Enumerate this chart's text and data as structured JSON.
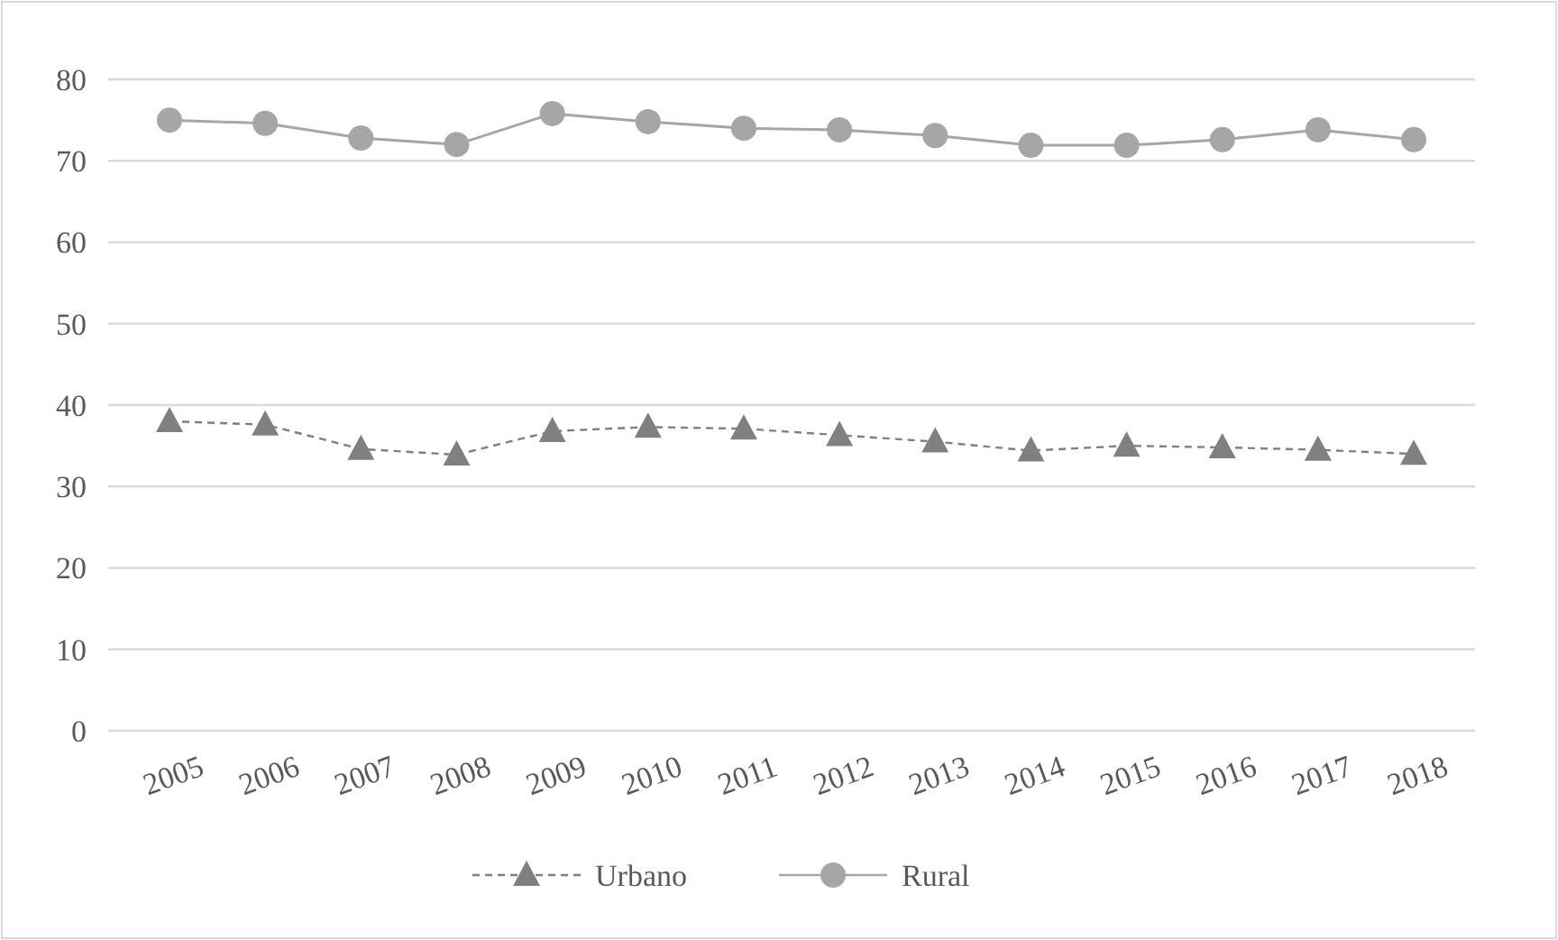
{
  "chart_data": {
    "type": "line",
    "categories": [
      "2005",
      "2006",
      "2007",
      "2008",
      "2009",
      "2010",
      "2011",
      "2012",
      "2013",
      "2014",
      "2015",
      "2016",
      "2017",
      "2018"
    ],
    "series": [
      {
        "name": "Urbano",
        "color": "#808080",
        "marker": "triangle",
        "line_style": "dashed",
        "values": [
          38,
          37.6,
          34.6,
          33.9,
          36.8,
          37.3,
          37.1,
          36.3,
          35.5,
          34.4,
          35,
          34.8,
          34.5,
          34
        ]
      },
      {
        "name": "Rural",
        "color": "#a6a6a6",
        "marker": "circle",
        "line_style": "solid",
        "values": [
          75,
          74.6,
          72.8,
          72,
          75.8,
          74.8,
          74,
          73.8,
          73.1,
          71.9,
          71.9,
          72.6,
          73.8,
          72.6
        ]
      }
    ],
    "ylim": [
      0,
      80
    ],
    "yticks": [
      0,
      10,
      20,
      30,
      40,
      50,
      60,
      70,
      80
    ],
    "grid": "y",
    "legend": "bottom"
  }
}
